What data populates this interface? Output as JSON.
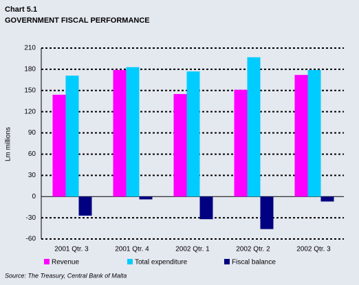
{
  "chart_data": {
    "type": "bar",
    "title": "Chart 5.1",
    "subtitle": "GOVERNMENT FISCAL PERFORMANCE",
    "y_label": "Lm millions",
    "categories": [
      "2001 Qtr. 3",
      "2001 Qtr. 4",
      "2002 Qtr. 1",
      "2002 Qtr. 2",
      "2002 Qtr. 3"
    ],
    "series": [
      {
        "name": "Revenue",
        "color": "#ff00ff",
        "values": [
          144,
          179,
          145,
          151,
          172
        ]
      },
      {
        "name": "Total expenditure",
        "color": "#00ccff",
        "values": [
          171,
          183,
          177,
          197,
          179
        ]
      },
      {
        "name": "Fiscal balance",
        "color": "#000080",
        "values": [
          -27,
          -4,
          -32,
          -46,
          -7
        ]
      }
    ],
    "ylim": [
      -60,
      210
    ],
    "yticks": [
      -60,
      -30,
      0,
      30,
      60,
      90,
      120,
      150,
      180,
      210
    ],
    "grid": true,
    "legend": "bottom",
    "source": "Source: The Treasury, Central Bank of Malta"
  }
}
